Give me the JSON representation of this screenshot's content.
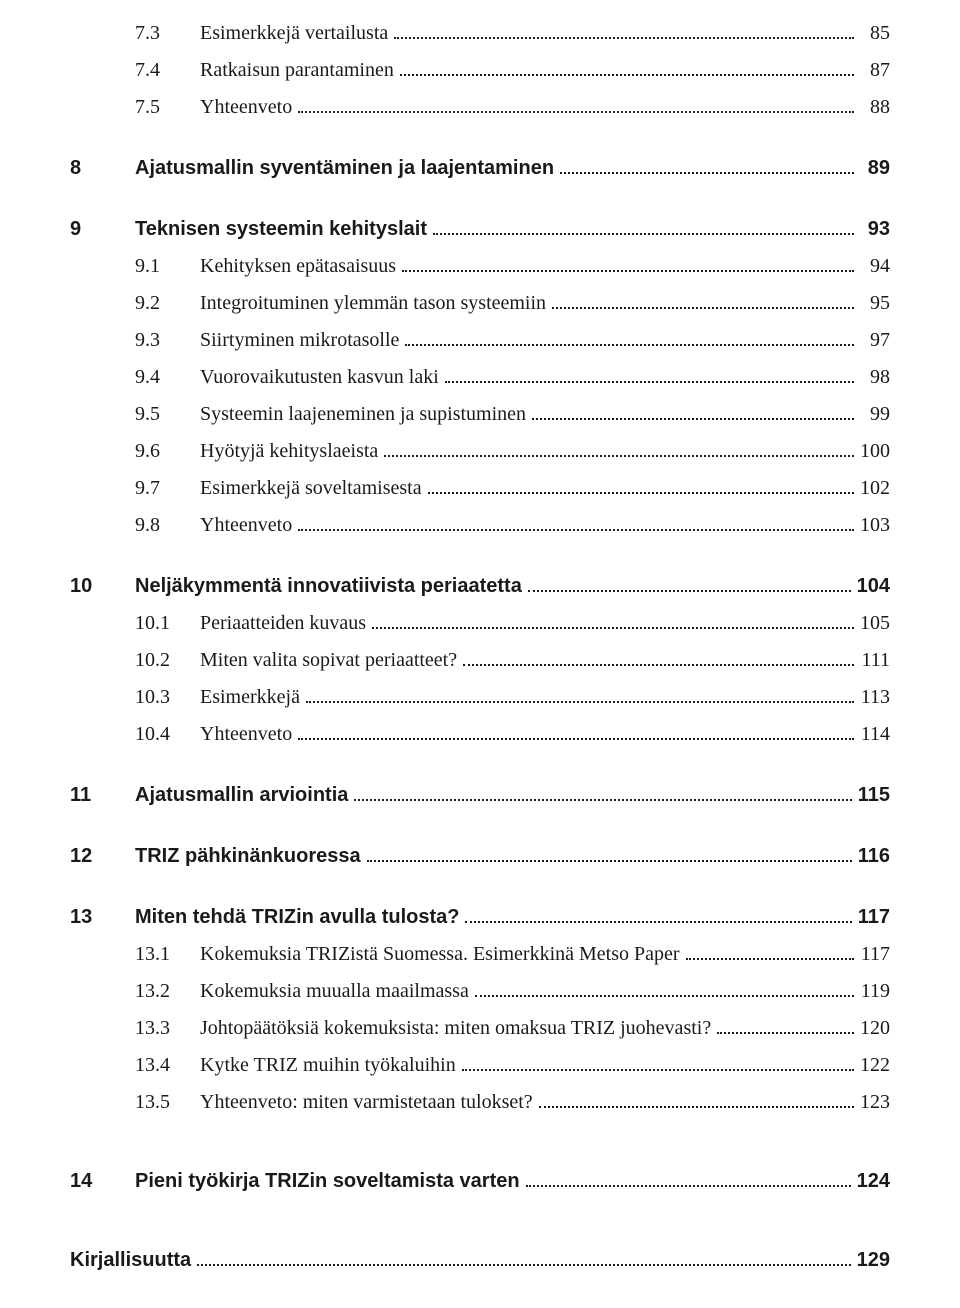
{
  "entries": [
    {
      "num": "7.3",
      "title": "Esimerkkejä vertailusta",
      "page": "85",
      "bold": false,
      "level": 2,
      "gap_before": false
    },
    {
      "num": "7.4",
      "title": "Ratkaisun parantaminen",
      "page": "87",
      "bold": false,
      "level": 2,
      "gap_before": false
    },
    {
      "num": "7.5",
      "title": "Yhteenveto",
      "page": "88",
      "bold": false,
      "level": 2,
      "gap_before": false
    },
    {
      "num": "8",
      "title": "Ajatusmallin syventäminen ja laajentaminen",
      "page": "89",
      "bold": true,
      "level": 1,
      "gap_before": true
    },
    {
      "num": "9",
      "title": "Teknisen systeemin kehityslait",
      "page": "93",
      "bold": true,
      "level": 1,
      "gap_before": true
    },
    {
      "num": "9.1",
      "title": "Kehityksen epätasaisuus",
      "page": "94",
      "bold": false,
      "level": 2,
      "gap_before": false
    },
    {
      "num": "9.2",
      "title": "Integroituminen ylemmän tason systeemiin",
      "page": "95",
      "bold": false,
      "level": 2,
      "gap_before": false
    },
    {
      "num": "9.3",
      "title": "Siirtyminen mikrotasolle",
      "page": "97",
      "bold": false,
      "level": 2,
      "gap_before": false
    },
    {
      "num": "9.4",
      "title": "Vuorovaikutusten kasvun laki",
      "page": "98",
      "bold": false,
      "level": 2,
      "gap_before": false
    },
    {
      "num": "9.5",
      "title": "Systeemin laajeneminen ja supistuminen",
      "page": "99",
      "bold": false,
      "level": 2,
      "gap_before": false
    },
    {
      "num": "9.6",
      "title": "Hyötyjä kehityslaeista",
      "page": "100",
      "bold": false,
      "level": 2,
      "gap_before": false
    },
    {
      "num": "9.7",
      "title": "Esimerkkejä soveltamisesta",
      "page": "102",
      "bold": false,
      "level": 2,
      "gap_before": false
    },
    {
      "num": "9.8",
      "title": "Yhteenveto",
      "page": "103",
      "bold": false,
      "level": 2,
      "gap_before": false
    },
    {
      "num": "10",
      "title": "Neljäkymmentä innovatiivista periaatetta",
      "page": "104",
      "bold": true,
      "level": 1,
      "gap_before": true
    },
    {
      "num": "10.1",
      "title": "Periaatteiden kuvaus",
      "page": "105",
      "bold": false,
      "level": 2,
      "gap_before": false
    },
    {
      "num": "10.2",
      "title": "Miten valita sopivat periaatteet?",
      "page": "111",
      "bold": false,
      "level": 2,
      "gap_before": false
    },
    {
      "num": "10.3",
      "title": "Esimerkkejä",
      "page": "113",
      "bold": false,
      "level": 2,
      "gap_before": false
    },
    {
      "num": "10.4",
      "title": "Yhteenveto",
      "page": "114",
      "bold": false,
      "level": 2,
      "gap_before": false
    },
    {
      "num": "11",
      "title": "Ajatusmallin arviointia",
      "page": "115",
      "bold": true,
      "level": 1,
      "gap_before": true
    },
    {
      "num": "12",
      "title": "TRIZ pähkinänkuoressa",
      "page": "116",
      "bold": true,
      "level": 1,
      "gap_before": true
    },
    {
      "num": "13",
      "title": "Miten tehdä TRIZin avulla tulosta?",
      "page": "117",
      "bold": true,
      "level": 1,
      "gap_before": true
    },
    {
      "num": "13.1",
      "title": "Kokemuksia TRIZistä Suomessa. Esimerkkinä Metso Paper",
      "page": "117",
      "bold": false,
      "level": 2,
      "gap_before": false
    },
    {
      "num": "13.2",
      "title": "Kokemuksia muualla maailmassa",
      "page": "119",
      "bold": false,
      "level": 2,
      "gap_before": false
    },
    {
      "num": "13.3",
      "title": "Johtopäätöksiä kokemuksista: miten omaksua TRIZ juohevasti?",
      "page": "120",
      "bold": false,
      "level": 2,
      "gap_before": false
    },
    {
      "num": "13.4",
      "title": "Kytke TRIZ muihin työkaluihin",
      "page": "122",
      "bold": false,
      "level": 2,
      "gap_before": false
    },
    {
      "num": "13.5",
      "title": "Yhteenveto: miten varmistetaan tulokset?",
      "page": "123",
      "bold": false,
      "level": 2,
      "gap_before": false
    },
    {
      "num": "14",
      "title": "Pieni työkirja TRIZin soveltamista varten",
      "page": "124",
      "bold": true,
      "level": 1,
      "gap_before": true,
      "big_gap": true
    },
    {
      "num": "",
      "title": "Kirjallisuutta",
      "page": "129",
      "bold": true,
      "level": 0,
      "gap_before": true,
      "big_gap": true
    }
  ],
  "page_number": ""
}
